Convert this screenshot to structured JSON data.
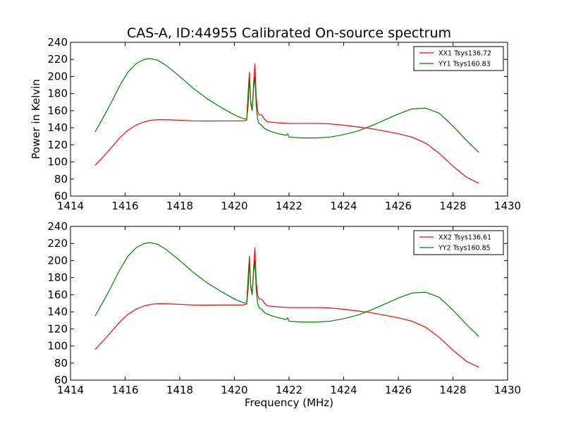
{
  "figure": {
    "title": "CAS-A, ID:44955 Calibrated On-source spectrum",
    "ylabel": "Power in Kelvin",
    "xlabel": "Frequency (MHz)"
  },
  "chart_data": [
    {
      "type": "line",
      "xlim": [
        1414,
        1430
      ],
      "ylim": [
        60,
        240
      ],
      "xticks": [
        1414,
        1416,
        1418,
        1420,
        1422,
        1424,
        1426,
        1428,
        1430
      ],
      "yticks": [
        60,
        80,
        100,
        120,
        140,
        160,
        180,
        200,
        220,
        240
      ],
      "legend_position": "top-right",
      "grid": false,
      "series": [
        {
          "name": "XX1 Tsys136.72",
          "color": "#ff0000",
          "x": [
            1414.9,
            1415.2,
            1415.5,
            1415.8,
            1416.1,
            1416.4,
            1416.7,
            1417.0,
            1417.3,
            1417.6,
            1418.0,
            1418.5,
            1419.0,
            1419.5,
            1420.0,
            1420.3,
            1420.45,
            1420.5,
            1420.55,
            1420.6,
            1420.65,
            1420.7,
            1420.75,
            1420.8,
            1420.85,
            1420.9,
            1421.0,
            1421.1,
            1421.2,
            1421.5,
            1422.0,
            1422.5,
            1423.0,
            1423.5,
            1424.0,
            1424.5,
            1425.0,
            1425.5,
            1426.0,
            1426.5,
            1427.0,
            1427.5,
            1428.0,
            1428.5,
            1428.95
          ],
          "y": [
            96,
            106,
            117,
            128,
            137,
            143,
            147,
            149,
            149.5,
            149.3,
            148.8,
            148,
            147.8,
            148,
            148,
            148,
            149,
            180,
            205,
            168,
            160,
            190,
            215,
            175,
            160,
            155,
            155,
            150,
            147,
            146,
            145,
            145,
            145,
            144.5,
            143,
            141,
            139,
            136,
            133,
            129,
            122,
            110,
            95,
            82,
            75
          ]
        },
        {
          "name": "YY1 Tsys160.83",
          "color": "#008000",
          "x": [
            1414.9,
            1415.2,
            1415.5,
            1415.8,
            1416.1,
            1416.4,
            1416.7,
            1416.9,
            1417.2,
            1417.5,
            1418.0,
            1418.5,
            1419.0,
            1419.5,
            1420.0,
            1420.3,
            1420.45,
            1420.5,
            1420.55,
            1420.6,
            1420.65,
            1420.7,
            1420.75,
            1420.8,
            1420.85,
            1420.9,
            1421.0,
            1421.1,
            1421.3,
            1421.6,
            1421.9,
            1421.95,
            1422.0,
            1422.5,
            1423.0,
            1423.5,
            1424.0,
            1424.5,
            1425.0,
            1425.5,
            1426.0,
            1426.5,
            1427.0,
            1427.5,
            1428.0,
            1428.5,
            1428.95
          ],
          "y": [
            135,
            152,
            170,
            189,
            205,
            215,
            220,
            221,
            219,
            213,
            200,
            186,
            174,
            164,
            155,
            151,
            150,
            165,
            199,
            170,
            160,
            185,
            200,
            165,
            150,
            145,
            143,
            139,
            136,
            133,
            131,
            133,
            129,
            128,
            128,
            129,
            132,
            136,
            142,
            149,
            156,
            162,
            163,
            157,
            142,
            125,
            111
          ]
        }
      ]
    },
    {
      "type": "line",
      "xlim": [
        1414,
        1430
      ],
      "ylim": [
        60,
        240
      ],
      "xticks": [
        1414,
        1416,
        1418,
        1420,
        1422,
        1424,
        1426,
        1428,
        1430
      ],
      "yticks": [
        60,
        80,
        100,
        120,
        140,
        160,
        180,
        200,
        220,
        240
      ],
      "legend_position": "top-right",
      "grid": false,
      "series": [
        {
          "name": "XX2 Tsys136.61",
          "color": "#ff0000",
          "x": [
            1414.9,
            1415.2,
            1415.5,
            1415.8,
            1416.1,
            1416.4,
            1416.7,
            1417.0,
            1417.3,
            1417.6,
            1418.0,
            1418.5,
            1419.0,
            1419.5,
            1420.0,
            1420.3,
            1420.45,
            1420.5,
            1420.55,
            1420.6,
            1420.65,
            1420.7,
            1420.75,
            1420.8,
            1420.85,
            1420.9,
            1421.0,
            1421.1,
            1421.2,
            1421.5,
            1422.0,
            1422.5,
            1423.0,
            1423.5,
            1424.0,
            1424.5,
            1425.0,
            1425.5,
            1426.0,
            1426.5,
            1427.0,
            1427.5,
            1428.0,
            1428.5,
            1428.95
          ],
          "y": [
            96,
            106,
            117,
            128,
            137,
            143,
            147,
            149,
            149.5,
            149.3,
            148.8,
            148,
            147.8,
            148,
            148,
            148,
            149,
            180,
            205,
            168,
            160,
            190,
            215,
            175,
            160,
            155,
            155,
            150,
            147,
            146,
            145,
            145,
            145,
            144.5,
            143,
            141,
            139,
            136,
            133,
            129,
            122,
            110,
            95,
            82,
            75
          ]
        },
        {
          "name": "YY2 Tsys160.85",
          "color": "#008000",
          "x": [
            1414.9,
            1415.2,
            1415.5,
            1415.8,
            1416.1,
            1416.4,
            1416.7,
            1416.9,
            1417.2,
            1417.5,
            1418.0,
            1418.5,
            1419.0,
            1419.5,
            1420.0,
            1420.3,
            1420.45,
            1420.5,
            1420.55,
            1420.6,
            1420.65,
            1420.7,
            1420.75,
            1420.8,
            1420.85,
            1420.9,
            1421.0,
            1421.1,
            1421.3,
            1421.6,
            1421.9,
            1421.95,
            1422.0,
            1422.5,
            1423.0,
            1423.5,
            1424.0,
            1424.5,
            1425.0,
            1425.5,
            1426.0,
            1426.5,
            1427.0,
            1427.5,
            1428.0,
            1428.5,
            1428.95
          ],
          "y": [
            135,
            152,
            170,
            189,
            205,
            215,
            220,
            221,
            219,
            213,
            200,
            186,
            174,
            164,
            155,
            151,
            150,
            165,
            199,
            170,
            160,
            185,
            200,
            165,
            150,
            145,
            143,
            139,
            136,
            133,
            131,
            133,
            129,
            128,
            128,
            129,
            132,
            136,
            142,
            149,
            156,
            162,
            163,
            157,
            142,
            125,
            111
          ]
        }
      ]
    }
  ]
}
